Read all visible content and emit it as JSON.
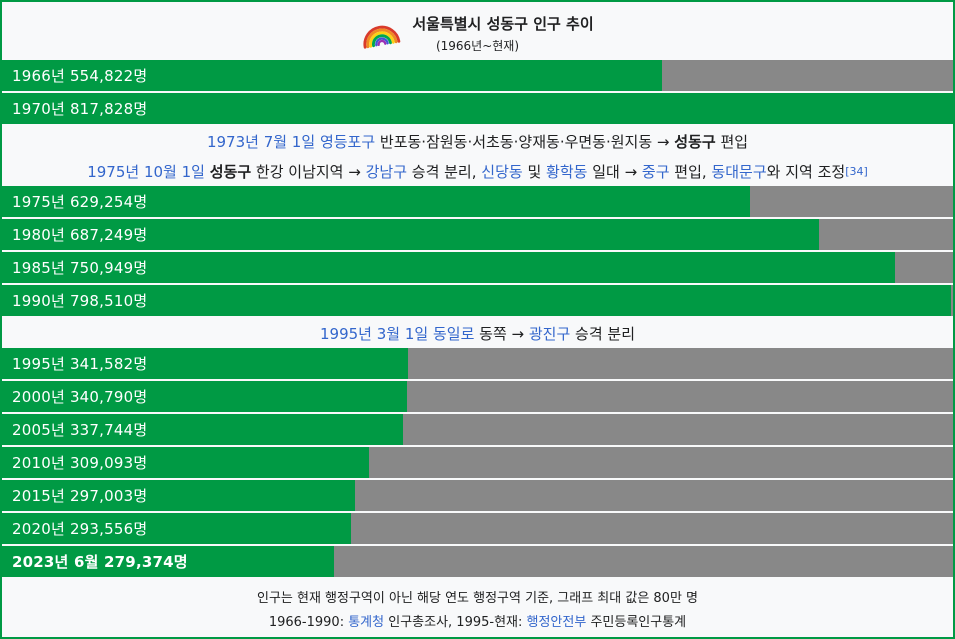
{
  "header": {
    "title": "서울특별시 성동구 인구 추이",
    "subtitle": "(1966년~현재)",
    "icon": "rainbow-icon"
  },
  "colors": {
    "bar_green": "#009a44",
    "track_gray": "#888888",
    "link_blue": "#3366cc",
    "panel_bg": "#f8f9fa",
    "bar_label_white": "#ffffff",
    "text": "#202122"
  },
  "chart_data": {
    "type": "bar",
    "orientation": "horizontal",
    "title": "서울특별시 성동구 인구 추이",
    "subtitle": "(1966년~현재)",
    "max_value": 800000,
    "max_value_note": "그래프 최대 값은 80만 명",
    "categories": [
      "1966년",
      "1970년",
      "1975년",
      "1980년",
      "1985년",
      "1990년",
      "1995년",
      "2000년",
      "2005년",
      "2010년",
      "2015년",
      "2020년",
      "2023년 6월"
    ],
    "values": [
      554822,
      817828,
      629254,
      687249,
      750949,
      798510,
      341582,
      340790,
      337744,
      309093,
      297003,
      293556,
      279374
    ],
    "rows": [
      {
        "kind": "bar",
        "label": "1966년 554,822명",
        "value": 554822,
        "bold": false
      },
      {
        "kind": "bar",
        "label": "1970년 817,828명",
        "value": 817828,
        "bold": false
      },
      {
        "kind": "note",
        "segments": [
          {
            "style": "link",
            "text": "1973년 7월 1일"
          },
          {
            "style": "plain",
            "text": " "
          },
          {
            "style": "link",
            "text": "영등포구"
          },
          {
            "style": "plain",
            "text": " 반포동·잠원동·서초동·양재동·우면동·원지동 → "
          },
          {
            "style": "bold",
            "text": "성동구"
          },
          {
            "style": "plain",
            "text": " 편입"
          }
        ]
      },
      {
        "kind": "note",
        "segments": [
          {
            "style": "link",
            "text": "1975년 10월 1일"
          },
          {
            "style": "plain",
            "text": " "
          },
          {
            "style": "bold",
            "text": "성동구"
          },
          {
            "style": "plain",
            "text": " 한강 이남지역 → "
          },
          {
            "style": "link",
            "text": "강남구"
          },
          {
            "style": "plain",
            "text": " 승격 분리, "
          },
          {
            "style": "link",
            "text": "신당동"
          },
          {
            "style": "plain",
            "text": " 및 "
          },
          {
            "style": "link",
            "text": "황학동"
          },
          {
            "style": "plain",
            "text": " 일대 → "
          },
          {
            "style": "link",
            "text": "중구"
          },
          {
            "style": "plain",
            "text": " 편입, "
          },
          {
            "style": "link",
            "text": "동대문구"
          },
          {
            "style": "plain",
            "text": "와 지역 조정"
          },
          {
            "style": "ref",
            "text": "[34]"
          }
        ]
      },
      {
        "kind": "bar",
        "label": "1975년 629,254명",
        "value": 629254,
        "bold": false
      },
      {
        "kind": "bar",
        "label": "1980년 687,249명",
        "value": 687249,
        "bold": false
      },
      {
        "kind": "bar",
        "label": "1985년 750,949명",
        "value": 750949,
        "bold": false
      },
      {
        "kind": "bar",
        "label": "1990년 798,510명",
        "value": 798510,
        "bold": false
      },
      {
        "kind": "note",
        "segments": [
          {
            "style": "link",
            "text": "1995년 3월 1일"
          },
          {
            "style": "plain",
            "text": " "
          },
          {
            "style": "link",
            "text": "동일로"
          },
          {
            "style": "plain",
            "text": " 동쪽 → "
          },
          {
            "style": "link",
            "text": "광진구"
          },
          {
            "style": "plain",
            "text": " 승격 분리"
          }
        ]
      },
      {
        "kind": "bar",
        "label": "1995년 341,582명",
        "value": 341582,
        "bold": false
      },
      {
        "kind": "bar",
        "label": "2000년 340,790명",
        "value": 340790,
        "bold": false
      },
      {
        "kind": "bar",
        "label": "2005년 337,744명",
        "value": 337744,
        "bold": false
      },
      {
        "kind": "bar",
        "label": "2010년 309,093명",
        "value": 309093,
        "bold": false
      },
      {
        "kind": "bar",
        "label": "2015년 297,003명",
        "value": 297003,
        "bold": false
      },
      {
        "kind": "bar",
        "label": "2020년 293,556명",
        "value": 293556,
        "bold": false
      },
      {
        "kind": "bar",
        "label": "2023년 6월 279,374명",
        "value": 279374,
        "bold": true
      }
    ]
  },
  "footer": {
    "line1": "인구는 현재 행정구역이 아닌 해당 연도 행정구역 기준, 그래프 최대 값은 80만 명",
    "line2_segments": [
      {
        "style": "plain",
        "text": "1966-1990: "
      },
      {
        "style": "link",
        "text": "통계청"
      },
      {
        "style": "plain",
        "text": " 인구총조사, 1995-현재: "
      },
      {
        "style": "link",
        "text": "행정안전부"
      },
      {
        "style": "plain",
        "text": " 주민등록인구통계"
      }
    ]
  }
}
